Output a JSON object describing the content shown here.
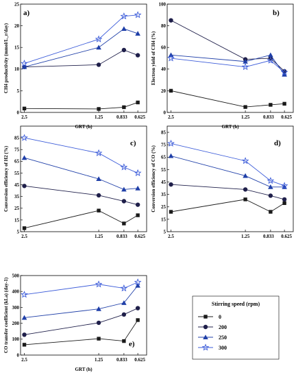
{
  "legend": {
    "title": "Stirring speed (rpm)",
    "entries": [
      {
        "label": "0",
        "marker": "square",
        "color": "#1a1a1a"
      },
      {
        "label": "200",
        "marker": "circle",
        "color": "#1f1f4a"
      },
      {
        "label": "250",
        "marker": "triangle",
        "color": "#1f3fa8"
      },
      {
        "label": "300",
        "marker": "star",
        "color": "#3b5bd9"
      }
    ]
  },
  "chart_data": [
    {
      "type": "line",
      "panel": "a)",
      "xlabel": "GRT (h)",
      "ylabel": "CH4 productivity (mmol/L_r/day)",
      "x_ticks": [
        "2.5",
        "1.25",
        "0.833",
        "0.625"
      ],
      "y_ticks": [
        0,
        5,
        10,
        15,
        20,
        25
      ],
      "ylim": [
        0,
        25
      ],
      "series": [
        {
          "name": "0",
          "values": [
            0.9,
            0.8,
            1.2,
            2.3
          ]
        },
        {
          "name": "200",
          "values": [
            10.5,
            11.0,
            14.4,
            13.2
          ]
        },
        {
          "name": "250",
          "values": [
            10.5,
            15.0,
            19.3,
            18.2
          ]
        },
        {
          "name": "300",
          "values": [
            11.3,
            16.9,
            22.2,
            22.5
          ]
        }
      ]
    },
    {
      "type": "line",
      "panel": "b)",
      "xlabel": "GRT (h)",
      "ylabel": "Electron yield of CH4 (%)",
      "x_ticks": [
        "2.5",
        "1.25",
        "0.833",
        "0.625"
      ],
      "y_ticks": [
        0,
        20,
        40,
        60,
        80,
        100
      ],
      "ylim": [
        0,
        100
      ],
      "series": [
        {
          "name": "0",
          "values": [
            20,
            5,
            7,
            8
          ]
        },
        {
          "name": "200",
          "values": [
            85,
            49,
            50,
            38
          ]
        },
        {
          "name": "250",
          "values": [
            53,
            47,
            53,
            35
          ]
        },
        {
          "name": "300",
          "values": [
            50,
            42,
            48,
            37
          ]
        }
      ]
    },
    {
      "type": "line",
      "panel": "c)",
      "xlabel": "",
      "ylabel": "Conversion efficiency of H2 (%)",
      "x_ticks": [
        "2.5",
        "1.25",
        "0.833",
        "0.625"
      ],
      "y_ticks": [
        5,
        15,
        25,
        35,
        45,
        55,
        65,
        75,
        85
      ],
      "ylim": [
        5,
        95
      ],
      "series": [
        {
          "name": "0",
          "values": [
            8,
            23,
            12,
            19
          ]
        },
        {
          "name": "200",
          "values": [
            44,
            36,
            31,
            28
          ]
        },
        {
          "name": "250",
          "values": [
            68,
            50,
            41,
            42
          ]
        },
        {
          "name": "300",
          "values": [
            85,
            72,
            60,
            55
          ]
        }
      ]
    },
    {
      "type": "line",
      "panel": "d)",
      "xlabel": "",
      "ylabel": "Conversion efficiency of CO (%)",
      "x_ticks": [
        "2.5",
        "1.25",
        "0.833",
        "0.625"
      ],
      "y_ticks": [
        5,
        15,
        25,
        35,
        45,
        55,
        65,
        75,
        85
      ],
      "ylim": [
        5,
        90
      ],
      "series": [
        {
          "name": "0",
          "values": [
            21,
            31,
            21,
            28
          ]
        },
        {
          "name": "200",
          "values": [
            43,
            39,
            34,
            31
          ]
        },
        {
          "name": "250",
          "values": [
            66,
            50,
            41,
            41
          ]
        },
        {
          "name": "300",
          "values": [
            76,
            62,
            46,
            42
          ]
        }
      ]
    },
    {
      "type": "line",
      "panel": "e)",
      "xlabel": "GRT (h)",
      "ylabel": "CO transfer coefficient (kLa) (day-1)",
      "x_ticks": [
        "2.5",
        "1.25",
        "0.833",
        "0.625"
      ],
      "y_ticks": [
        0,
        100,
        200,
        300,
        400,
        500
      ],
      "ylim": [
        0,
        500
      ],
      "series": [
        {
          "name": "0",
          "values": [
            65,
            103,
            88,
            220
          ]
        },
        {
          "name": "200",
          "values": [
            128,
            203,
            255,
            295
          ]
        },
        {
          "name": "250",
          "values": [
            235,
            290,
            328,
            437
          ]
        },
        {
          "name": "300",
          "values": [
            380,
            445,
            420,
            458
          ]
        }
      ]
    }
  ]
}
